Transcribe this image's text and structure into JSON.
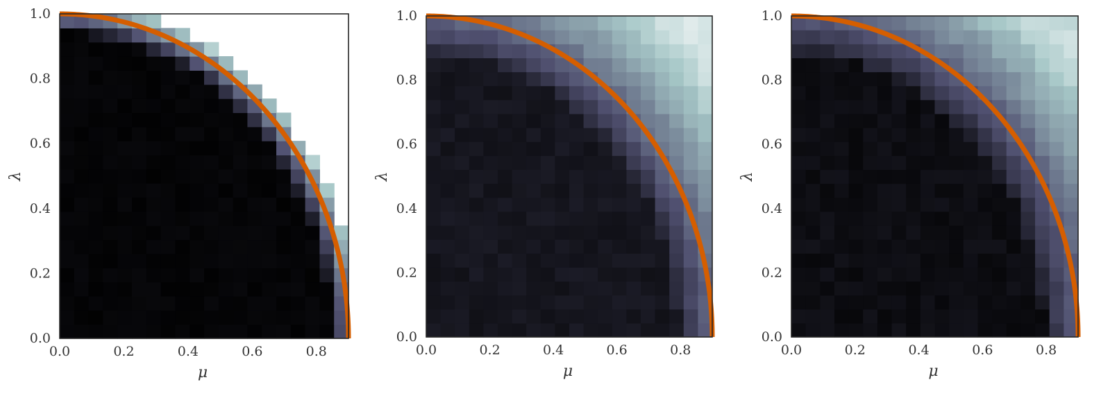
{
  "chart_data": [
    {
      "type": "heatmap",
      "xlabel": "μ",
      "ylabel": "λ",
      "xlim": [
        0.0,
        0.9
      ],
      "ylim": [
        0.0,
        1.0
      ],
      "xticks": [
        "0.0",
        "0.2",
        "0.4",
        "0.6",
        "0.8"
      ],
      "yticks": [
        "0.0",
        "0.2",
        "0.4",
        "0.6",
        "0.8",
        "1.0"
      ],
      "grid": false,
      "colormap": "bone",
      "background_color": "#ffffff",
      "mask_above_boundary": true,
      "boundary_curve": {
        "equation": "(μ/0.9)^2 + λ^2 = 1",
        "color": "#d55e00",
        "mu_max": 0.9
      },
      "heatmap_rule": "near-black interior, brightening sharply in a narrow band next to the boundary; cells beyond the boundary blank"
    },
    {
      "type": "heatmap",
      "xlabel": "μ",
      "ylabel": "λ",
      "xlim": [
        0.0,
        0.9
      ],
      "ylim": [
        0.0,
        1.0
      ],
      "xticks": [
        "0.0",
        "0.2",
        "0.4",
        "0.6",
        "0.8"
      ],
      "yticks": [
        "0.0",
        "0.2",
        "0.4",
        "0.6",
        "0.8",
        "1.0"
      ],
      "grid": false,
      "colormap": "bone",
      "mask_above_boundary": false,
      "boundary_curve": {
        "equation": "(μ/0.9)^2 + λ^2 = 1",
        "color": "#d55e00",
        "mu_max": 0.9
      },
      "heatmap_rule": "dark navy interior, rising to light blue-grey beyond the boundary, brightest at the top-right corner"
    },
    {
      "type": "heatmap",
      "xlabel": "μ",
      "ylabel": "λ",
      "xlim": [
        0.0,
        0.9
      ],
      "ylim": [
        0.0,
        1.0
      ],
      "xticks": [
        "0.0",
        "0.2",
        "0.4",
        "0.6",
        "0.8"
      ],
      "yticks": [
        "0.0",
        "0.2",
        "0.4",
        "0.6",
        "0.8",
        "1.0"
      ],
      "grid": false,
      "colormap": "bone",
      "mask_above_boundary": false,
      "boundary_curve": {
        "equation": "(μ/0.9)^2 + λ^2 = 1",
        "color": "#d55e00",
        "mu_max": 0.9
      },
      "heatmap_rule": "near-black interior, rising to light blue-grey beyond the boundary, brightest at the top-right corner"
    }
  ]
}
